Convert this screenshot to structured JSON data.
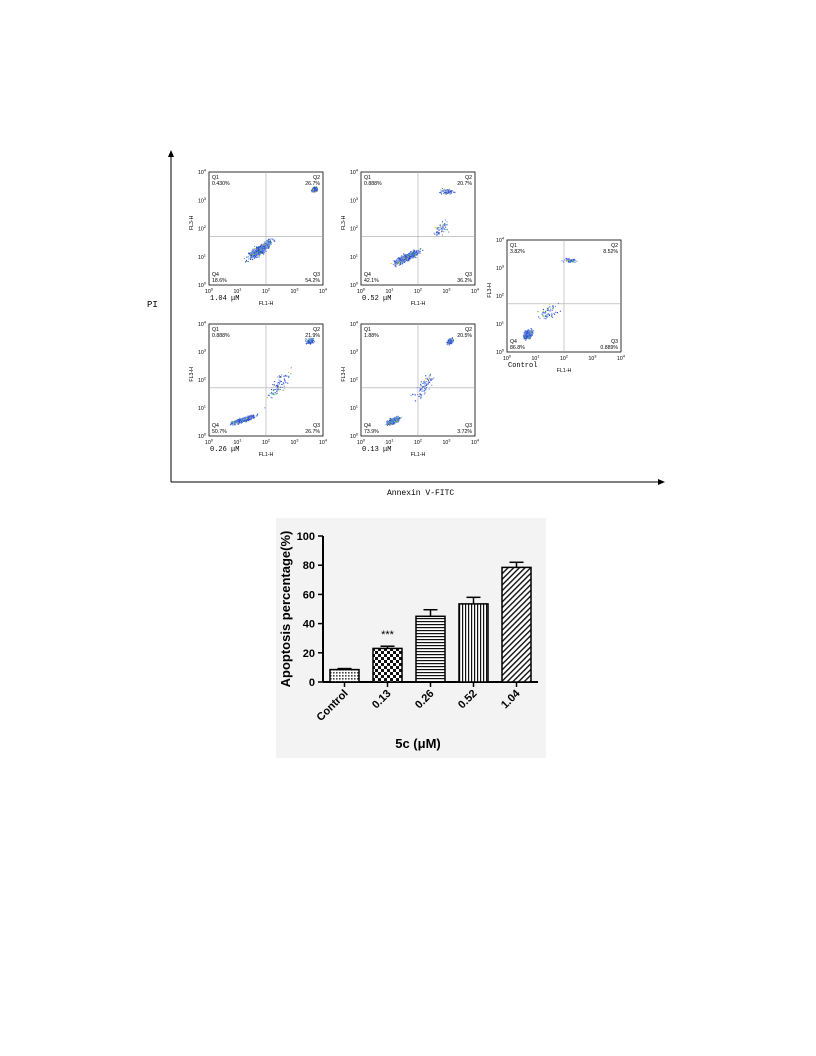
{
  "flow_figure": {
    "y_axis_label": "PI",
    "x_axis_label": "Annexin V-FITC",
    "panel_x_label": "FL1-H",
    "panel_y_label": "FL3-H",
    "tick_labels": [
      "10^0",
      "10^1",
      "10^2",
      "10^3",
      "10^4"
    ],
    "panels": [
      {
        "name": "1.04 μM",
        "q1": "0.430%",
        "q2": "26.7%",
        "q3": "54.2%",
        "q4": "18.6%",
        "pattern": "diag-late"
      },
      {
        "name": "0.52 μM",
        "q1": "0.888%",
        "q2": "20.7%",
        "q3": "36.2%",
        "q4": "42.1%",
        "pattern": "diag"
      },
      {
        "name": "0.26 μM",
        "q1": "0.888%",
        "q2": "21.9%",
        "q3": "26.7%",
        "q4": "50.7%",
        "pattern": "diag-low"
      },
      {
        "name": "0.13 μM",
        "q1": "1.88%",
        "q2": "20.5%",
        "q3": "3.72%",
        "q4": "73.9%",
        "pattern": "cluster-late"
      },
      {
        "name": "Control",
        "q1": "3.82%",
        "q2": "8.52%",
        "q3": "0.889%",
        "q4": "86.8%",
        "pattern": "cluster"
      }
    ]
  },
  "chart_data": {
    "type": "bar",
    "categories": [
      "Control",
      "0.13",
      "0.26",
      "0.52",
      "1.04"
    ],
    "series": [
      {
        "values": [
          8.5,
          23,
          45,
          53.5,
          78.5
        ],
        "error": [
          0.7,
          1.5,
          4.5,
          4.5,
          3.5
        ]
      }
    ],
    "patterns": [
      "dots",
      "checker",
      "hlines",
      "vlines",
      "diag"
    ],
    "annotations": [
      {
        "category": "0.13",
        "text": "***"
      }
    ],
    "title": "",
    "xlabel": "5c (μM)",
    "ylabel": "Apoptosis percentage(%)",
    "ylim": [
      0,
      100
    ],
    "yticks": [
      0,
      20,
      40,
      60,
      80,
      100
    ],
    "grid": false
  }
}
